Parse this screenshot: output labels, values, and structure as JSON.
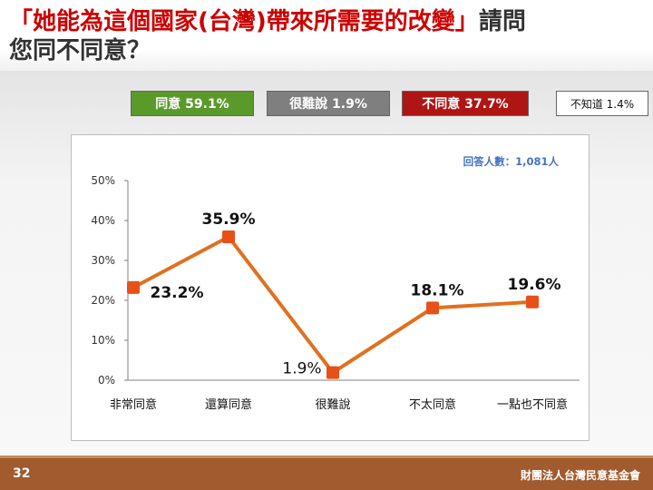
{
  "title": {
    "line1_open": "「",
    "line1_quote": "她能為這個國家(台灣)帶來所需要的改變",
    "line1_close": "」",
    "line1_tail": "請問",
    "line2": "您同不同意？"
  },
  "summary": [
    {
      "label": "同意 59.1%",
      "bg": "#5a9a2a",
      "fg": "#ffffff"
    },
    {
      "label": "很難說 1.9%",
      "bg": "#7f7f7f",
      "fg": "#ffffff"
    },
    {
      "label": "不同意 37.7%",
      "bg": "#b01515",
      "fg": "#ffffff"
    },
    {
      "label": "不知道 1.4%",
      "bg": "#ffffff",
      "fg": "#111111"
    }
  ],
  "chart_data": {
    "type": "line",
    "categories": [
      "非常同意",
      "還算同意",
      "很難說",
      "不太同意",
      "一點也不同意"
    ],
    "values": [
      23.2,
      35.9,
      1.9,
      18.1,
      19.6
    ],
    "data_labels": [
      "23.2%",
      "35.9%",
      "1.9%",
      "18.1%",
      "19.6%"
    ],
    "ylim": [
      0,
      50
    ],
    "y_ticks": [
      0,
      10,
      20,
      30,
      40,
      50
    ],
    "y_tick_labels": [
      "0%",
      "10%",
      "20%",
      "30%",
      "40%",
      "50%"
    ],
    "note": "回答人數：1,081人",
    "line_color": "#e07020",
    "marker_color": "#e85018",
    "grid": false
  },
  "footer": {
    "page": "32",
    "org": "財團法人台灣民意基金會"
  }
}
